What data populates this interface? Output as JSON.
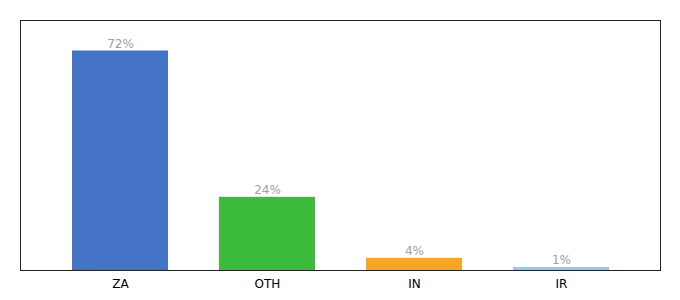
{
  "chart_data": {
    "type": "bar",
    "categories": [
      "ZA",
      "OTH",
      "IN",
      "IR"
    ],
    "values": [
      72,
      24,
      4,
      1
    ],
    "value_labels": [
      "72%",
      "24%",
      "4%",
      "1%"
    ],
    "colors": [
      "#4472c4",
      "#3dbb3d",
      "#f5a623",
      "#87ceeb"
    ],
    "ylim": [
      0,
      82
    ],
    "data_labels": true,
    "tick_labels": "x"
  }
}
